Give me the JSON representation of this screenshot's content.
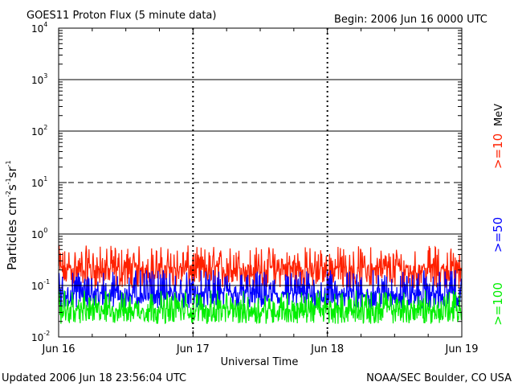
{
  "chart_data": {
    "type": "line",
    "title": "GOES11 Proton Flux (5 minute data)",
    "begin_label": "Begin: 2006 Jun 16 0000 UTC",
    "ylabel": "Particles cm",
    "ylabel_exp1": "-2",
    "ylabel_mid1": "s",
    "ylabel_exp2": "-1",
    "ylabel_mid2": "sr",
    "ylabel_exp3": "-1",
    "xlabel": "Universal Time",
    "y_scale": "log",
    "ylim": [
      0.01,
      10000
    ],
    "y_ticks": [
      {
        "base": "10",
        "exp": "4"
      },
      {
        "base": "10",
        "exp": "3"
      },
      {
        "base": "10",
        "exp": "2"
      },
      {
        "base": "10",
        "exp": "1"
      },
      {
        "base": "10",
        "exp": "0"
      },
      {
        "base": "10",
        "exp": "-1"
      },
      {
        "base": "10",
        "exp": "-2"
      }
    ],
    "x_ticks": [
      "Jun 16",
      "Jun 17",
      "Jun 18",
      "Jun 19"
    ],
    "xlim_days": [
      0,
      3
    ],
    "reference_lines": [
      {
        "value": 1000,
        "style": "solid"
      },
      {
        "value": 100,
        "style": "solid"
      },
      {
        "value": 10,
        "style": "dashed"
      },
      {
        "value": 1,
        "style": "solid"
      },
      {
        "value": 0.1,
        "style": "solid"
      }
    ],
    "series": [
      {
        "name": ">=10",
        "color": "#ff2000",
        "typical": 0.22,
        "low": 0.09,
        "high": 0.6
      },
      {
        "name": ">=50",
        "color": "#0000ff",
        "typical": 0.07,
        "low": 0.035,
        "high": 0.2
      },
      {
        "name": ">=100",
        "color": "#00ee00",
        "typical": 0.035,
        "low": 0.018,
        "high": 0.08
      }
    ],
    "unit_label": "MeV",
    "updated": "Updated 2006 Jun 18 23:56:04 UTC",
    "credit": "NOAA/SEC Boulder, CO USA"
  }
}
